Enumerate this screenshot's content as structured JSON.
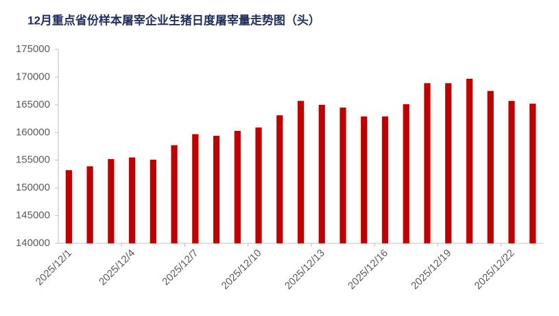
{
  "chart_data": {
    "type": "bar",
    "title": "12月重点省份样本屠宰企业生猪日度屠宰量走势图（头）",
    "categories": [
      "2025/12/1",
      null,
      null,
      "2025/12/4",
      null,
      null,
      "2025/12/7",
      null,
      null,
      "2025/12/10",
      null,
      null,
      "2025/12/13",
      null,
      null,
      "2025/12/16",
      null,
      null,
      "2025/12/19",
      null,
      null,
      "2025/12/22",
      null
    ],
    "values": [
      153200,
      153900,
      155200,
      155500,
      155100,
      157700,
      159700,
      159400,
      160300,
      160900,
      163100,
      165700,
      165000,
      164500,
      162900,
      162900,
      165100,
      168900,
      168900,
      169700,
      167500,
      165700,
      165200
    ],
    "color": "#c00000",
    "ylim": [
      140000,
      175000
    ],
    "yticks": [
      140000,
      145000,
      150000,
      155000,
      160000,
      165000,
      170000,
      175000
    ],
    "grid": false
  }
}
